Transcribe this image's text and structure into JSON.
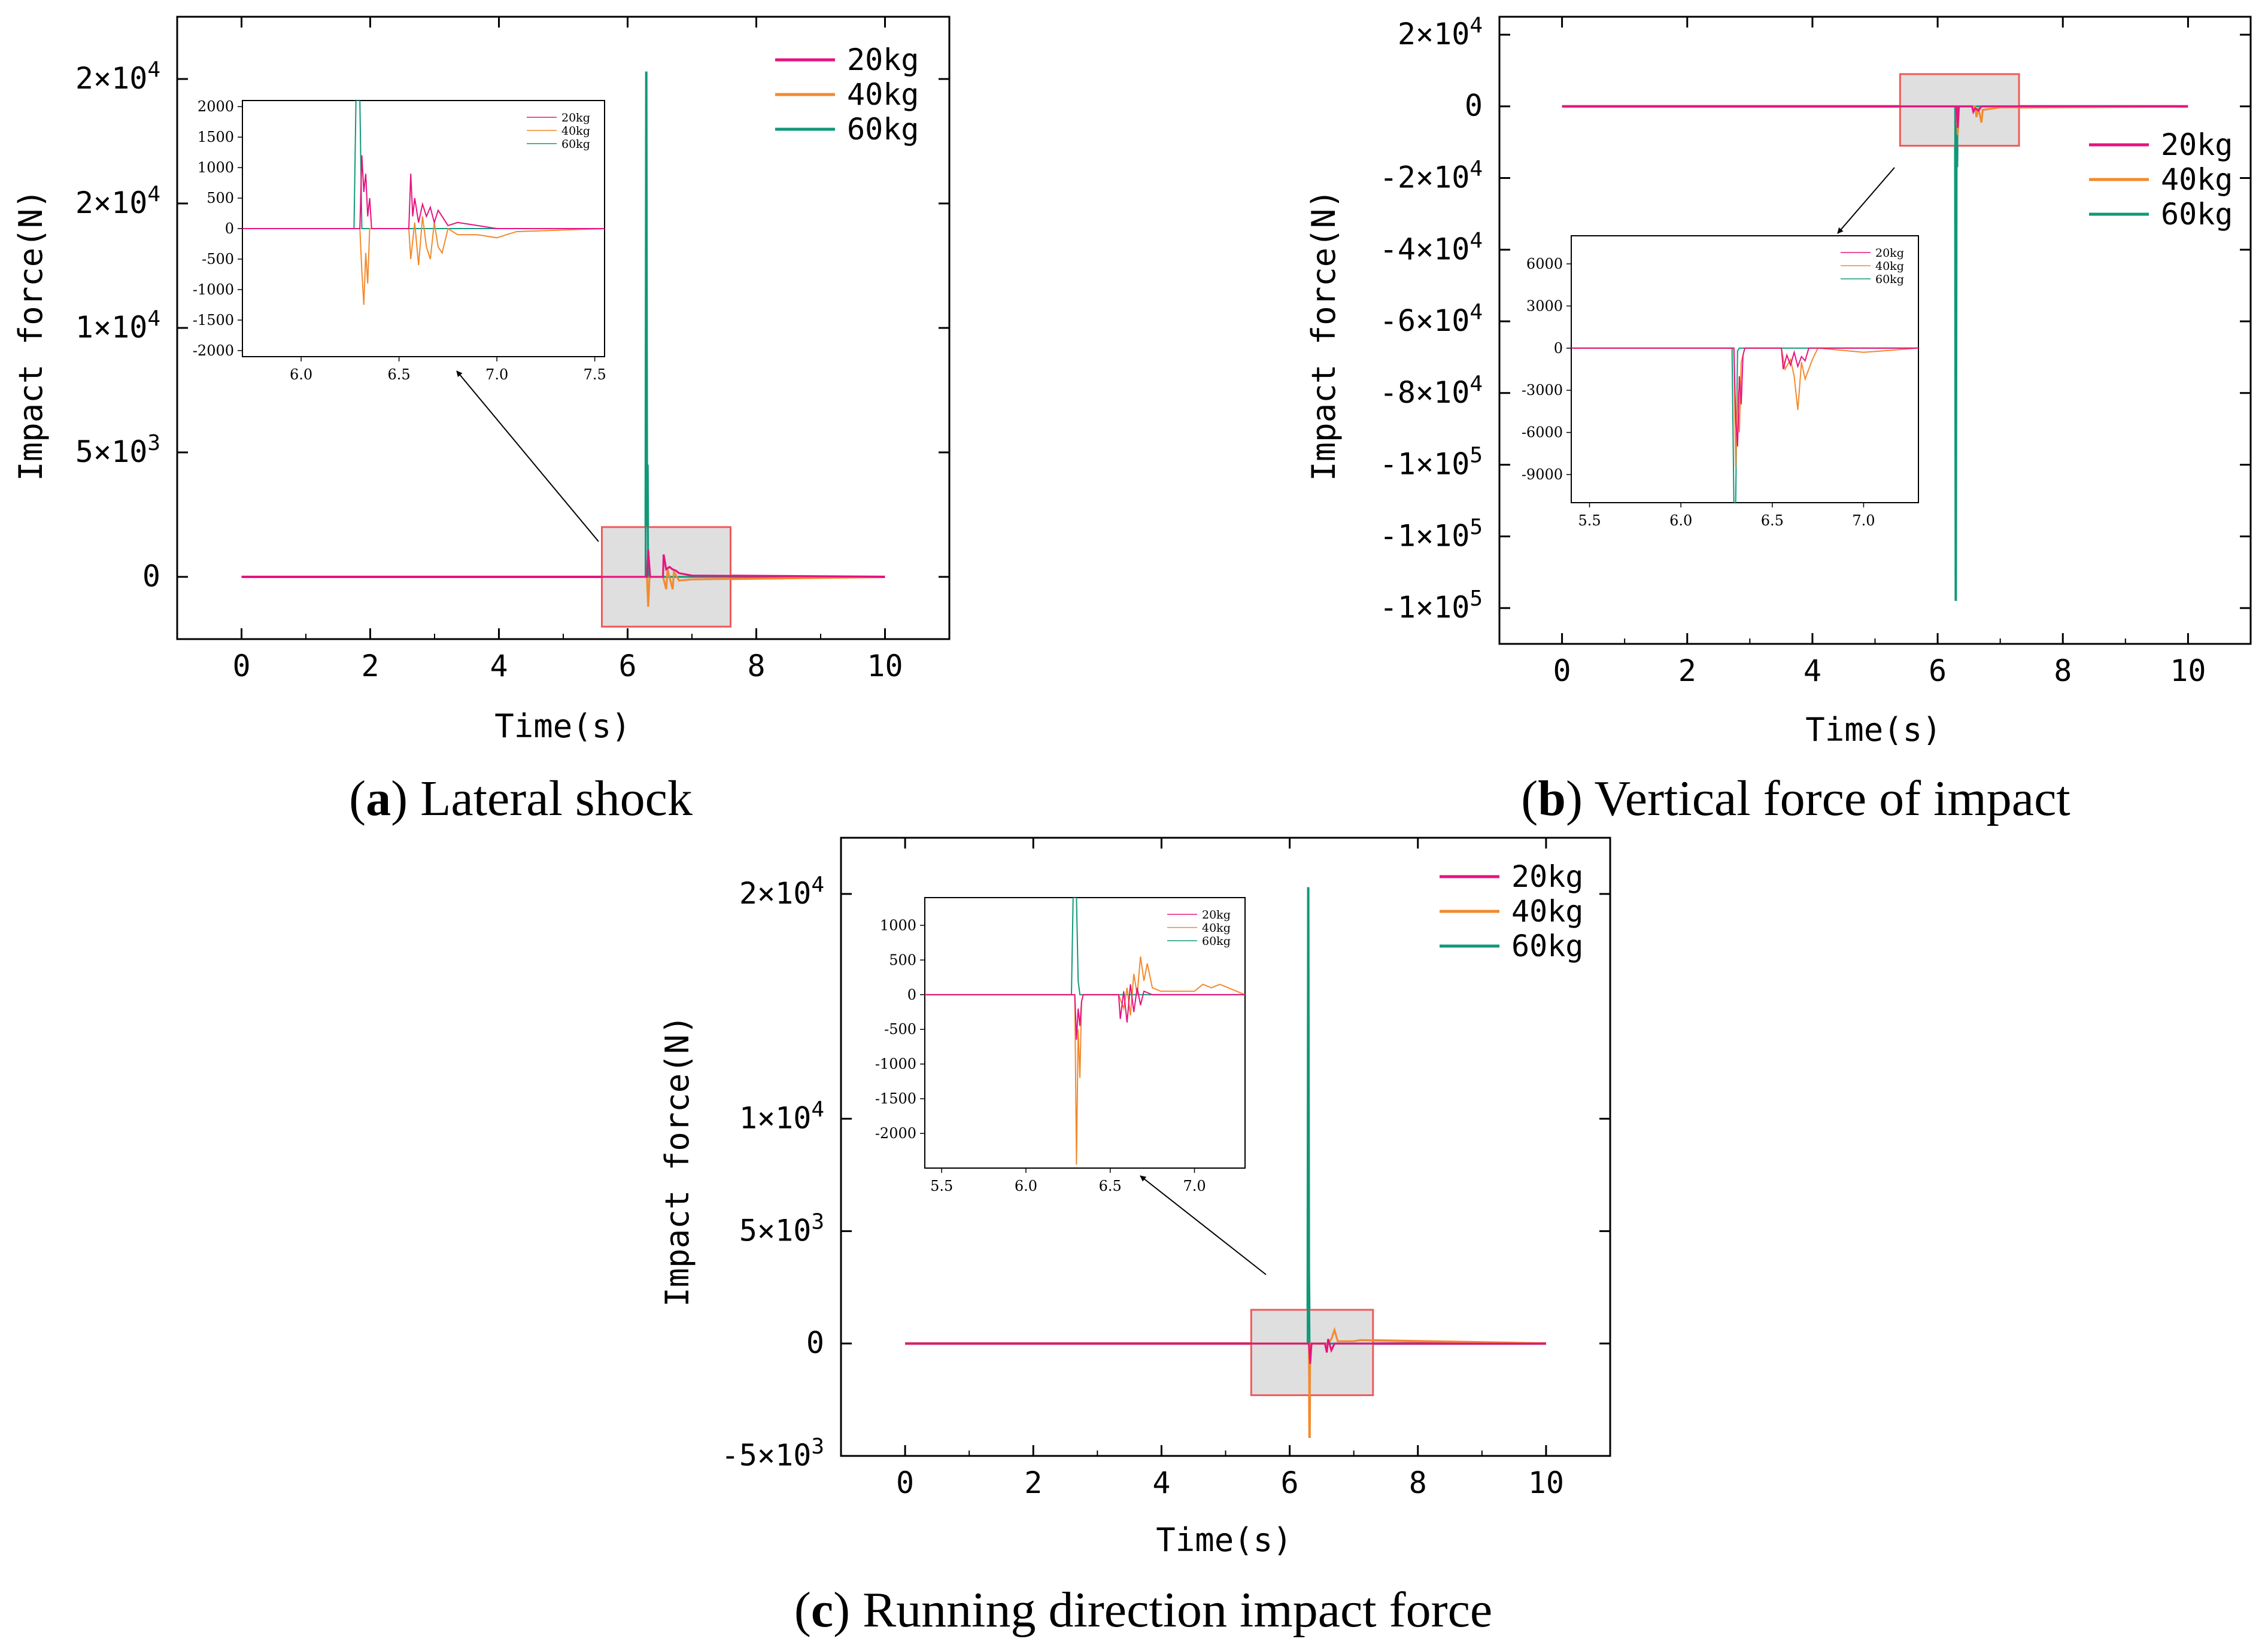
{
  "colors": {
    "kg20": "#e6137f",
    "kg40": "#f28a2e",
    "kg60": "#119879",
    "inset_box_fill": "#d9d9d9",
    "inset_box_stroke": "#f05a5a"
  },
  "chart_data": [
    {
      "id": "a",
      "type": "line",
      "caption_letter": "a",
      "caption_text": "Lateral shock",
      "xlabel": "Time(s)",
      "ylabel": "Impact force(N)",
      "xlim": [
        -1,
        11
      ],
      "ylim": [
        -2500,
        22500
      ],
      "x_ticks": [
        "0",
        "2",
        "4",
        "6",
        "8",
        "10"
      ],
      "x_tick_values": [
        0,
        2,
        4,
        6,
        8,
        10
      ],
      "y_tick_values": [
        0,
        5000,
        10000,
        15000,
        20000
      ],
      "y_ticks": [
        {
          "mant": "0",
          "exp": ""
        },
        {
          "mant": "5×10",
          "exp": "3"
        },
        {
          "mant": "1×10",
          "exp": "4"
        },
        {
          "mant": "2×10",
          "exp": "4"
        },
        {
          "mant": "2×10",
          "exp": "4"
        }
      ],
      "legend": [
        "20kg",
        "40kg",
        "60kg"
      ],
      "series": [
        {
          "name": "60kg",
          "color_key": "kg60",
          "x": [
            0,
            6.28,
            6.29,
            6.3,
            6.31,
            6.32,
            10
          ],
          "y": [
            0,
            0,
            20300,
            2500,
            4500,
            0,
            0
          ]
        },
        {
          "name": "40kg",
          "color_key": "kg40",
          "x": [
            0,
            6.3,
            6.32,
            6.34,
            6.55,
            6.6,
            6.62,
            6.7,
            6.72,
            6.8,
            7.0,
            10
          ],
          "y": [
            0,
            0,
            -1200,
            0,
            0,
            -500,
            300,
            -500,
            200,
            -150,
            -100,
            0
          ]
        },
        {
          "name": "20kg",
          "color_key": "kg20",
          "x": [
            0,
            6.3,
            6.32,
            6.35,
            6.55,
            6.56,
            6.6,
            6.65,
            6.7,
            6.75,
            6.8,
            7.0,
            10
          ],
          "y": [
            0,
            0,
            1100,
            0,
            0,
            900,
            300,
            400,
            300,
            250,
            150,
            50,
            0
          ]
        }
      ],
      "zoom_box": {
        "x": [
          5.6,
          7.6
        ],
        "y": [
          -2000,
          2000
        ]
      },
      "inset": {
        "xlim": [
          5.7,
          7.55
        ],
        "ylim": [
          -2100,
          2100
        ],
        "x_ticks": [
          "6.0",
          "6.5",
          "7.0",
          "7.5"
        ],
        "x_tick_values": [
          6.0,
          6.5,
          7.0,
          7.5
        ],
        "y_ticks": [
          "2000",
          "1500",
          "1000",
          "500",
          "0",
          "-500",
          "-1000",
          "-1500",
          "-2000"
        ],
        "y_tick_values": [
          2000,
          1500,
          1000,
          500,
          0,
          -500,
          -1000,
          -1500,
          -2000
        ],
        "legend": [
          "20kg",
          "40kg",
          "60kg"
        ],
        "series": [
          {
            "name": "60kg",
            "color_key": "kg60",
            "x": [
              5.7,
              6.27,
              6.28,
              6.29,
              6.3,
              6.31,
              7.55
            ],
            "y": [
              0,
              0,
              2100,
              2100,
              2100,
              0,
              0
            ]
          },
          {
            "name": "40kg",
            "color_key": "kg40",
            "x": [
              5.7,
              6.3,
              6.31,
              6.32,
              6.33,
              6.34,
              6.35,
              6.55,
              6.56,
              6.58,
              6.6,
              6.62,
              6.64,
              6.66,
              6.68,
              6.7,
              6.72,
              6.75,
              6.8,
              6.9,
              7.0,
              7.1,
              7.55
            ],
            "y": [
              0,
              0,
              -700,
              -1250,
              -400,
              -900,
              0,
              0,
              -500,
              100,
              -600,
              200,
              -300,
              -500,
              100,
              -300,
              -400,
              0,
              -100,
              -100,
              -150,
              -50,
              0
            ]
          },
          {
            "name": "20kg",
            "color_key": "kg20",
            "x": [
              5.7,
              6.3,
              6.31,
              6.32,
              6.33,
              6.34,
              6.35,
              6.36,
              6.55,
              6.56,
              6.57,
              6.58,
              6.6,
              6.62,
              6.64,
              6.66,
              6.68,
              6.7,
              6.72,
              6.75,
              6.8,
              6.9,
              7.0,
              7.55
            ],
            "y": [
              0,
              0,
              1200,
              600,
              900,
              200,
              500,
              0,
              0,
              900,
              200,
              500,
              100,
              400,
              200,
              350,
              100,
              300,
              200,
              50,
              100,
              50,
              0,
              0
            ]
          }
        ]
      }
    },
    {
      "id": "b",
      "type": "line",
      "caption_letter": "b",
      "caption_text": "Vertical force of impact",
      "xlabel": "Time(s)",
      "ylabel": "Impact force(N)",
      "xlim": [
        -1,
        11
      ],
      "ylim": [
        -150000,
        25000
      ],
      "x_ticks": [
        "0",
        "2",
        "4",
        "6",
        "8",
        "10"
      ],
      "x_tick_values": [
        0,
        2,
        4,
        6,
        8,
        10
      ],
      "y_tick_values": [
        20000,
        0,
        -20000,
        -40000,
        -60000,
        -80000,
        -100000,
        -120000,
        -140000
      ],
      "y_ticks": [
        {
          "mant": "2×10",
          "exp": "4"
        },
        {
          "mant": "0",
          "exp": ""
        },
        {
          "mant": "-2×10",
          "exp": "4"
        },
        {
          "mant": "-4×10",
          "exp": "4"
        },
        {
          "mant": "-6×10",
          "exp": "4"
        },
        {
          "mant": "-8×10",
          "exp": "4"
        },
        {
          "mant": "-1×10",
          "exp": "5"
        },
        {
          "mant": "-1×10",
          "exp": "5"
        },
        {
          "mant": "-1×10",
          "exp": "5"
        }
      ],
      "legend": [
        "20kg",
        "40kg",
        "60kg"
      ],
      "series": [
        {
          "name": "60kg",
          "color_key": "kg60",
          "x": [
            0,
            6.28,
            6.29,
            6.3,
            6.31,
            6.32,
            10
          ],
          "y": [
            0,
            0,
            -138000,
            -5000,
            -17000,
            0,
            0
          ]
        },
        {
          "name": "40kg",
          "color_key": "kg40",
          "x": [
            0,
            6.3,
            6.32,
            6.34,
            6.6,
            6.62,
            6.65,
            6.7,
            6.72,
            7.0,
            10
          ],
          "y": [
            0,
            0,
            -8000,
            0,
            0,
            -3000,
            -500,
            -4500,
            -1000,
            -300,
            0
          ]
        },
        {
          "name": "20kg",
          "color_key": "kg20",
          "x": [
            0,
            6.3,
            6.32,
            6.34,
            6.55,
            6.57,
            6.6,
            6.65,
            6.7,
            10
          ],
          "y": [
            0,
            0,
            -6000,
            0,
            0,
            -1500,
            -500,
            -1200,
            0,
            0
          ]
        }
      ],
      "zoom_box": {
        "x": [
          5.4,
          7.3
        ],
        "y": [
          -11000,
          9000
        ]
      },
      "inset": {
        "xlim": [
          5.4,
          7.3
        ],
        "ylim": [
          -11000,
          8000
        ],
        "x_ticks": [
          "5.5",
          "6.0",
          "6.5",
          "7.0"
        ],
        "x_tick_values": [
          5.5,
          6.0,
          6.5,
          7.0
        ],
        "y_ticks": [
          "6000",
          "3000",
          "0",
          "-3000",
          "-6000",
          "-9000"
        ],
        "y_tick_values": [
          6000,
          3000,
          0,
          -3000,
          -6000,
          -9000
        ],
        "legend": [
          "20kg",
          "40kg",
          "60kg"
        ],
        "series": [
          {
            "name": "60kg",
            "color_key": "kg60",
            "x": [
              5.4,
              6.28,
              6.29,
              6.3,
              6.31,
              6.32,
              7.3
            ],
            "y": [
              0,
              0,
              -11000,
              -11000,
              -200,
              0,
              0
            ]
          },
          {
            "name": "40kg",
            "color_key": "kg40",
            "x": [
              5.4,
              6.29,
              6.3,
              6.31,
              6.32,
              6.33,
              6.34,
              6.35,
              6.55,
              6.57,
              6.6,
              6.62,
              6.64,
              6.66,
              6.68,
              6.7,
              6.72,
              6.75,
              7.0,
              7.1,
              7.3
            ],
            "y": [
              0,
              0,
              -8500,
              -3000,
              -6000,
              -1000,
              -500,
              0,
              0,
              -1500,
              -800,
              -2000,
              -4400,
              -1000,
              -2200,
              -1500,
              -800,
              0,
              -300,
              -200,
              0
            ]
          },
          {
            "name": "20kg",
            "color_key": "kg20",
            "x": [
              5.4,
              6.29,
              6.3,
              6.31,
              6.32,
              6.33,
              6.34,
              6.35,
              6.55,
              6.56,
              6.58,
              6.6,
              6.62,
              6.64,
              6.66,
              6.68,
              6.7,
              7.3
            ],
            "y": [
              0,
              0,
              -5000,
              -7000,
              -2000,
              -4000,
              -500,
              0,
              0,
              -1500,
              -500,
              -1200,
              -300,
              -1300,
              -600,
              -900,
              0,
              0
            ]
          }
        ]
      }
    },
    {
      "id": "c",
      "type": "line",
      "caption_letter": "c",
      "caption_text": "Running direction impact force",
      "xlabel": "Time(s)",
      "ylabel": "Impact force(N)",
      "xlim": [
        -1,
        11
      ],
      "ylim": [
        -5000,
        22500
      ],
      "x_ticks": [
        "0",
        "2",
        "4",
        "6",
        "8",
        "10"
      ],
      "x_tick_values": [
        0,
        2,
        4,
        6,
        8,
        10
      ],
      "y_tick_values": [
        20000,
        10000,
        5000,
        0,
        -5000
      ],
      "y_ticks": [
        {
          "mant": "2×10",
          "exp": "4"
        },
        {
          "mant": "1×10",
          "exp": "4"
        },
        {
          "mant": "5×10",
          "exp": "3"
        },
        {
          "mant": "0",
          "exp": ""
        },
        {
          "mant": "-5×10",
          "exp": "3"
        }
      ],
      "legend": [
        "20kg",
        "40kg",
        "60kg"
      ],
      "series": [
        {
          "name": "60kg",
          "color_key": "kg60",
          "x": [
            0,
            6.28,
            6.29,
            6.3,
            6.31,
            6.32,
            10
          ],
          "y": [
            0,
            0,
            20300,
            3200,
            0,
            0,
            0
          ]
        },
        {
          "name": "40kg",
          "color_key": "kg40",
          "x": [
            0,
            6.3,
            6.31,
            6.32,
            6.6,
            6.65,
            6.7,
            6.75,
            7.0,
            7.1,
            10
          ],
          "y": [
            0,
            0,
            -4200,
            0,
            0,
            200,
            600,
            100,
            100,
            150,
            0
          ]
        },
        {
          "name": "20kg",
          "color_key": "kg20",
          "x": [
            0,
            6.3,
            6.32,
            6.34,
            6.55,
            6.58,
            6.6,
            6.65,
            6.7,
            10
          ],
          "y": [
            0,
            0,
            -900,
            0,
            0,
            -400,
            200,
            -300,
            0,
            0
          ]
        }
      ],
      "zoom_box": {
        "x": [
          5.4,
          7.3
        ],
        "y": [
          -2300,
          1500
        ]
      },
      "inset": {
        "xlim": [
          5.4,
          7.3
        ],
        "ylim": [
          -2500,
          1400
        ],
        "x_ticks": [
          "5.5",
          "6.0",
          "6.5",
          "7.0"
        ],
        "x_tick_values": [
          5.5,
          6.0,
          6.5,
          7.0
        ],
        "y_ticks": [
          "1000",
          "500",
          "0",
          "-500",
          "-1000",
          "-1500",
          "-2000"
        ],
        "y_tick_values": [
          1000,
          500,
          0,
          -500,
          -1000,
          -1500,
          -2000
        ],
        "legend": [
          "20kg",
          "40kg",
          "60kg"
        ],
        "series": [
          {
            "name": "60kg",
            "color_key": "kg60",
            "x": [
              5.4,
              6.27,
              6.28,
              6.29,
              6.3,
              6.31,
              6.32,
              7.3
            ],
            "y": [
              0,
              0,
              1400,
              1400,
              1400,
              200,
              0,
              0
            ]
          },
          {
            "name": "40kg",
            "color_key": "kg40",
            "x": [
              5.4,
              6.29,
              6.3,
              6.31,
              6.32,
              6.33,
              6.34,
              6.55,
              6.58,
              6.6,
              6.62,
              6.64,
              6.66,
              6.68,
              6.7,
              6.72,
              6.75,
              6.8,
              7.0,
              7.05,
              7.1,
              7.15,
              7.3
            ],
            "y": [
              0,
              0,
              -2450,
              -500,
              -1200,
              -100,
              0,
              0,
              -200,
              100,
              -300,
              300,
              0,
              550,
              200,
              450,
              100,
              50,
              50,
              150,
              100,
              150,
              0
            ]
          },
          {
            "name": "20kg",
            "color_key": "kg20",
            "x": [
              5.4,
              6.29,
              6.3,
              6.31,
              6.32,
              6.33,
              6.34,
              6.55,
              6.56,
              6.58,
              6.6,
              6.62,
              6.64,
              6.66,
              6.68,
              6.7,
              6.75,
              7.3
            ],
            "y": [
              0,
              0,
              -650,
              -200,
              -450,
              -100,
              0,
              0,
              -350,
              50,
              -400,
              150,
              -250,
              100,
              -150,
              50,
              0,
              0
            ]
          }
        ]
      }
    }
  ]
}
